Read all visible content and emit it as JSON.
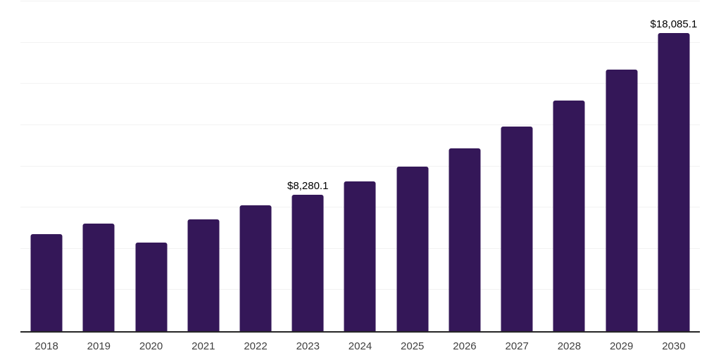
{
  "chart_data": {
    "type": "bar",
    "title": "",
    "xlabel": "",
    "ylabel": "",
    "categories": [
      "2018",
      "2019",
      "2020",
      "2021",
      "2022",
      "2023",
      "2024",
      "2025",
      "2026",
      "2027",
      "2028",
      "2029",
      "2030"
    ],
    "values": [
      5880,
      6520,
      5390,
      6800,
      7620,
      8280.1,
      9100,
      10000,
      11100,
      12400,
      13970,
      15860,
      18085.1
    ],
    "value_labels": {
      "2023": "$8,280.1",
      "2030": "$18,085.1"
    },
    "ylim": [
      0,
      20000
    ],
    "gridline_interval": 2500,
    "grid": true,
    "legend": false
  },
  "theme": {
    "background_color": "#ffffff",
    "bar_color": "#341758",
    "gridline_color": "#f2f2f2",
    "axis_line_color": "#262626",
    "tick_label_color": "#404040",
    "data_label_color": "#000000"
  }
}
